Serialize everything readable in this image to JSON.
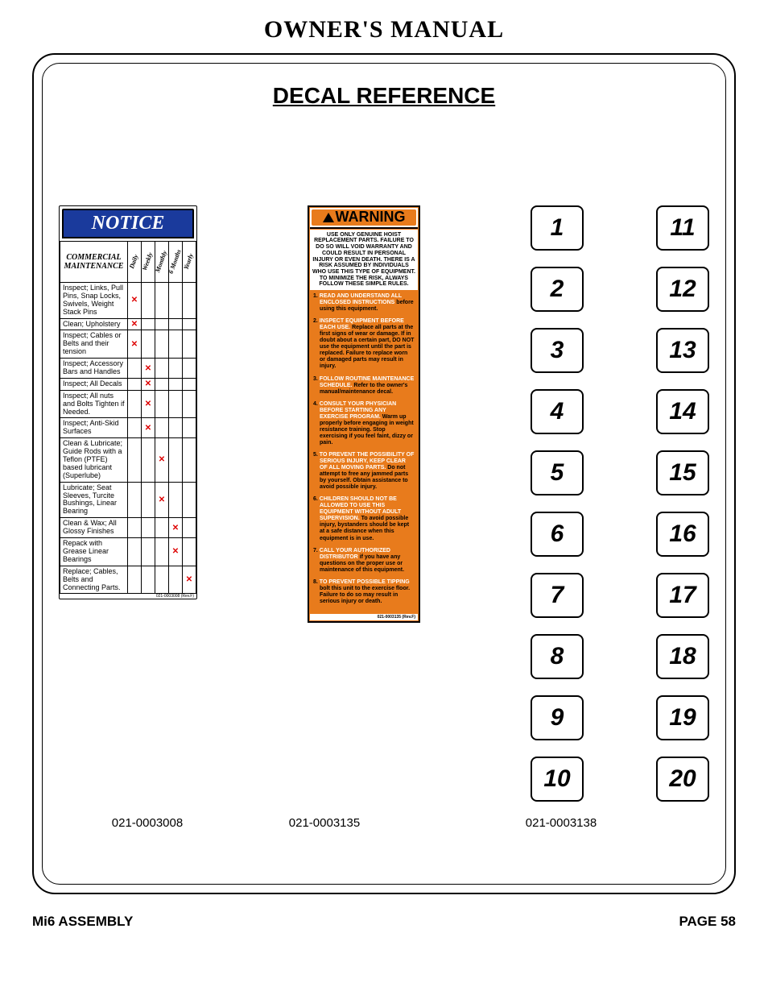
{
  "doc_title": "OWNER'S MANUAL",
  "section_title": "DECAL REFERENCE",
  "notice": {
    "header": "NOTICE",
    "tasks_hdr": "COMMERCIAL MAINTENANCE",
    "freq_cols": [
      "Daily",
      "Weekly",
      "Monthly",
      "6 Months",
      "Yearly"
    ],
    "rows": [
      {
        "task": "Inspect; Links, Pull Pins, Snap Locks, Swivels, Weight Stack Pins",
        "marks": [
          "x",
          "",
          "",
          "",
          ""
        ]
      },
      {
        "task": "Clean; Upholstery",
        "marks": [
          "x",
          "",
          "",
          "",
          ""
        ]
      },
      {
        "task": "Inspect; Cables or Belts and their tension",
        "marks": [
          "x",
          "",
          "",
          "",
          ""
        ]
      },
      {
        "task": "Inspect; Accessory Bars and Handles",
        "marks": [
          "",
          "x",
          "",
          "",
          ""
        ]
      },
      {
        "task": "Inspect; All Decals",
        "marks": [
          "",
          "x",
          "",
          "",
          ""
        ]
      },
      {
        "task": "Inspect; All nuts and Bolts Tighten if Needed.",
        "marks": [
          "",
          "x",
          "",
          "",
          ""
        ]
      },
      {
        "task": "Inspect; Anti-Skid Surfaces",
        "marks": [
          "",
          "x",
          "",
          "",
          ""
        ]
      },
      {
        "task": "Clean & Lubricate; Guide Rods with a Teflon (PTFE) based lubricant (Superlube)",
        "marks": [
          "",
          "",
          "x",
          "",
          ""
        ]
      },
      {
        "task": "Lubricate; Seat Sleeves, Turcite Bushings, Linear Bearing",
        "marks": [
          "",
          "",
          "x",
          "",
          ""
        ]
      },
      {
        "task": "Clean & Wax; All Glossy Finishes",
        "marks": [
          "",
          "",
          "",
          "x",
          ""
        ]
      },
      {
        "task": "Repack with Grease Linear Bearings",
        "marks": [
          "",
          "",
          "",
          "x",
          ""
        ]
      },
      {
        "task": "Replace; Cables, Belts and Connecting Parts.",
        "marks": [
          "",
          "",
          "",
          "",
          "x"
        ]
      }
    ],
    "smallprint": "021-0003008 (Rev.F)",
    "part": "021-0003008"
  },
  "warning": {
    "header": "WARNING",
    "intro": "USE ONLY GENUINE HOIST REPLACEMENT PARTS. FAILURE TO DO SO WILL VOID WARRANTY AND COULD RESULT IN PERSONAL INJURY OR EVEN DEATH. THERE IS A RISK ASSUMED BY INDIVIDUALS WHO USE THIS TYPE OF EQUIPMENT. TO MINIMIZE THE RISK, ALWAYS FOLLOW THESE SIMPLE RULES.",
    "items": [
      {
        "n": "1.",
        "lead": "READ AND UNDERSTAND ALL ENCLOSED INSTRUCTIONS",
        "rest": " before using this equipment."
      },
      {
        "n": "2.",
        "lead": "INSPECT EQUIPMENT BEFORE EACH USE.",
        "rest": " Replace all parts at the first signs of wear or damage. If in doubt about a certain part, DO NOT use the equipment until the part is replaced. Failure to replace worn or damaged parts may result in injury."
      },
      {
        "n": "3.",
        "lead": "FOLLOW ROUTINE MAINTENANCE SCHEDULE.",
        "rest": " Refer to the owner's manual/maintenance decal."
      },
      {
        "n": "4.",
        "lead": "CONSULT YOUR PHYSICIAN BEFORE STARTING ANY EXERCISE PROGRAM.",
        "rest": " Warm up properly before engaging in weight resistance training. Stop exercising if you feel faint, dizzy or pain."
      },
      {
        "n": "5.",
        "lead": "TO PREVENT THE POSSIBILITY OF SERIOUS INJURY, KEEP CLEAR OF ALL MOVING PARTS.",
        "rest": " Do not attempt to free any jammed parts by yourself. Obtain assistance to avoid possible injury."
      },
      {
        "n": "6.",
        "lead": "CHILDREN SHOULD NOT BE ALLOWED TO USE THIS EQUIPMENT WITHOUT ADULT SUPERVISION.",
        "rest": " To avoid possible injury, bystanders should be kept at a safe distance when this equipment is in use."
      },
      {
        "n": "7.",
        "lead": "CALL YOUR AUTHORIZED DISTRIBUTOR",
        "rest": " if you have any questions on the proper use or maintenance of this equipment."
      },
      {
        "n": "8.",
        "lead": "TO PREVENT POSSIBLE TIPPING",
        "rest": " bolt this unit to the exercise floor. Failure to do so may result in serious injury or death."
      }
    ],
    "smallprint": "021-0003135 (Rev.F)",
    "part": "021-0003135"
  },
  "numbers": {
    "left": [
      "1",
      "2",
      "3",
      "4",
      "5",
      "6",
      "7",
      "8",
      "9",
      "10"
    ],
    "right": [
      "11",
      "12",
      "13",
      "14",
      "15",
      "16",
      "17",
      "18",
      "19",
      "20"
    ],
    "part": "021-0003138"
  },
  "footer": {
    "left": "Mi6 ASSEMBLY",
    "right": "PAGE 58"
  },
  "colors": {
    "notice_blue": "#1a3a9c",
    "warning_orange": "#e87b1c",
    "mark_red": "#d00000"
  }
}
